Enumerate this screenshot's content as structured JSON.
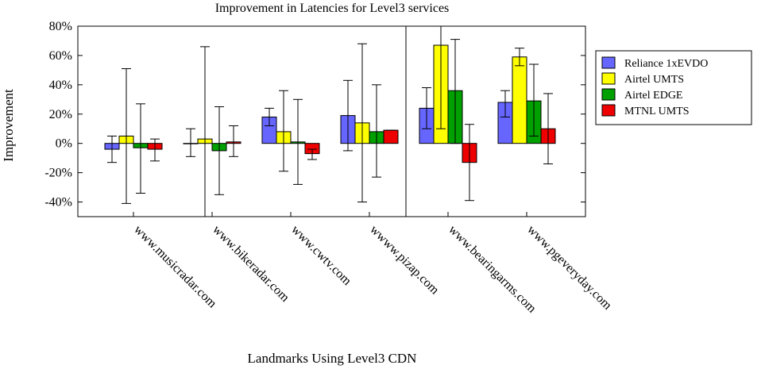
{
  "chart_data": {
    "type": "bar",
    "title": "Improvement in Latencies for Level3 services",
    "xlabel": "Landmarks Using Level3 CDN",
    "ylabel": "Improvement",
    "ylim": [
      -50,
      80
    ],
    "yticks": [
      -40,
      -20,
      0,
      20,
      40,
      60,
      80
    ],
    "ytick_labels": [
      "-40%",
      "-20%",
      "0%",
      "20%",
      "40%",
      "60%",
      "80%"
    ],
    "categories": [
      "www.musicradar.com",
      "www.bikeradar.com",
      "www.cwtv.com",
      "wwww.pizap.com",
      "www.bearingarms.com",
      "www.pgeveryday.com"
    ],
    "legend_position": "right",
    "series": [
      {
        "name": "Reliance 1xEVDO",
        "color": "#6666ff",
        "values": [
          -4,
          0,
          18,
          19,
          24,
          28
        ],
        "err_low": [
          -13,
          -9,
          12,
          -5,
          10,
          18
        ],
        "err_high": [
          5,
          10,
          24,
          43,
          38,
          36
        ]
      },
      {
        "name": "Airtel UMTS",
        "color": "#ffff00",
        "values": [
          5,
          3,
          8,
          14,
          67,
          59
        ],
        "err_low": [
          -41,
          -55,
          -19,
          -40,
          10,
          53
        ],
        "err_high": [
          51,
          66,
          36,
          68,
          80,
          65
        ]
      },
      {
        "name": "Airtel EDGE",
        "color": "#00a000",
        "values": [
          -3,
          -5,
          1,
          8,
          36,
          29
        ],
        "err_low": [
          -34,
          -35,
          -28,
          -23,
          0,
          5
        ],
        "err_high": [
          27,
          25,
          30,
          40,
          71,
          54
        ]
      },
      {
        "name": "MTNL UMTS",
        "color": "#ee0000",
        "values": [
          -4,
          1,
          -7,
          9,
          -13,
          10
        ],
        "err_low": [
          -12,
          -9,
          -11,
          9,
          -39,
          -14
        ],
        "err_high": [
          3,
          12,
          -4,
          9,
          13,
          34
        ]
      }
    ]
  }
}
